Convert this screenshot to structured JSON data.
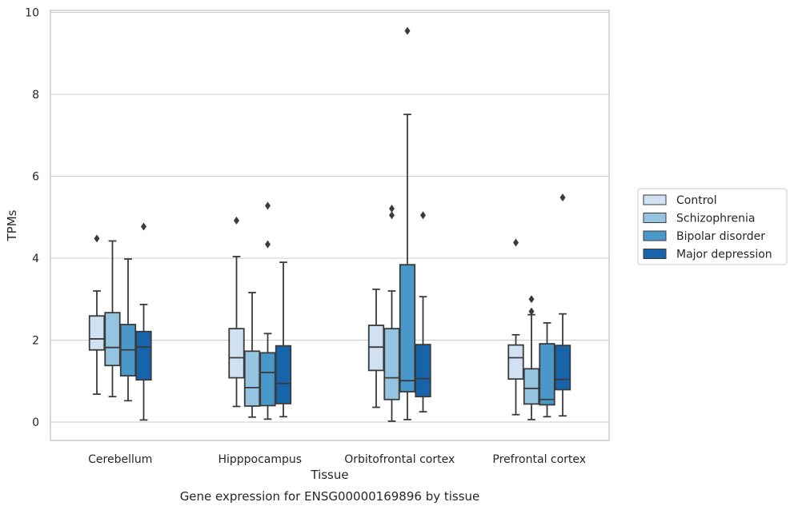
{
  "caption": "Gene expression for ENSG00000169896 by tissue",
  "chart_data": {
    "type": "boxplot",
    "xlabel": "Tissue",
    "ylabel": "TPMs",
    "ylim": [
      -0.45,
      10.05
    ],
    "yticks": [
      0,
      2,
      4,
      6,
      8,
      10
    ],
    "grid": true,
    "legend_position": "right",
    "categories": [
      "Cerebellum",
      "Hipppocampus",
      "Orbitofrontal cortex",
      "Prefrontal cortex"
    ],
    "series": [
      {
        "name": "Control",
        "color": "#d0e1f2",
        "boxes": [
          {
            "whislo": 0.68,
            "q1": 1.76,
            "med": 2.03,
            "q3": 2.59,
            "whishi": 3.2,
            "fliers": [
              4.48
            ]
          },
          {
            "whislo": 0.38,
            "q1": 1.08,
            "med": 1.57,
            "q3": 2.28,
            "whishi": 4.04,
            "fliers": [
              4.92
            ]
          },
          {
            "whislo": 0.36,
            "q1": 1.26,
            "med": 1.83,
            "q3": 2.36,
            "whishi": 3.24,
            "fliers": []
          },
          {
            "whislo": 0.18,
            "q1": 1.05,
            "med": 1.57,
            "q3": 1.88,
            "whishi": 2.13,
            "fliers": [
              4.38
            ]
          }
        ]
      },
      {
        "name": "Schizophrenia",
        "color": "#94c4df",
        "boxes": [
          {
            "whislo": 0.62,
            "q1": 1.38,
            "med": 1.82,
            "q3": 2.67,
            "whishi": 4.42,
            "fliers": []
          },
          {
            "whislo": 0.12,
            "q1": 0.39,
            "med": 0.84,
            "q3": 1.73,
            "whishi": 3.16,
            "fliers": []
          },
          {
            "whislo": 0.02,
            "q1": 0.55,
            "med": 1.08,
            "q3": 2.28,
            "whishi": 3.2,
            "fliers": [
              5.05,
              5.21
            ]
          },
          {
            "whislo": 0.06,
            "q1": 0.44,
            "med": 0.82,
            "q3": 1.3,
            "whishi": 2.62,
            "fliers": [
              2.7,
              3.0
            ]
          }
        ]
      },
      {
        "name": "Bipolar disorder",
        "color": "#4a98c9",
        "boxes": [
          {
            "whislo": 0.52,
            "q1": 1.13,
            "med": 1.76,
            "q3": 2.38,
            "whishi": 3.98,
            "fliers": []
          },
          {
            "whislo": 0.07,
            "q1": 0.4,
            "med": 1.21,
            "q3": 1.69,
            "whishi": 2.16,
            "fliers": [
              4.34,
              5.28
            ]
          },
          {
            "whislo": 0.06,
            "q1": 0.74,
            "med": 1.01,
            "q3": 3.84,
            "whishi": 7.51,
            "fliers": [
              9.55
            ]
          },
          {
            "whislo": 0.13,
            "q1": 0.42,
            "med": 0.55,
            "q3": 1.91,
            "whishi": 2.42,
            "fliers": []
          }
        ]
      },
      {
        "name": "Major depression",
        "color": "#1764ab",
        "boxes": [
          {
            "whislo": 0.05,
            "q1": 1.03,
            "med": 1.83,
            "q3": 2.21,
            "whishi": 2.87,
            "fliers": [
              4.77
            ]
          },
          {
            "whislo": 0.13,
            "q1": 0.45,
            "med": 0.94,
            "q3": 1.86,
            "whishi": 3.9,
            "fliers": []
          },
          {
            "whislo": 0.25,
            "q1": 0.62,
            "med": 1.06,
            "q3": 1.89,
            "whishi": 3.06,
            "fliers": [
              5.05
            ]
          },
          {
            "whislo": 0.15,
            "q1": 0.79,
            "med": 1.04,
            "q3": 1.87,
            "whishi": 2.64,
            "fliers": [
              5.48
            ]
          }
        ]
      }
    ]
  }
}
